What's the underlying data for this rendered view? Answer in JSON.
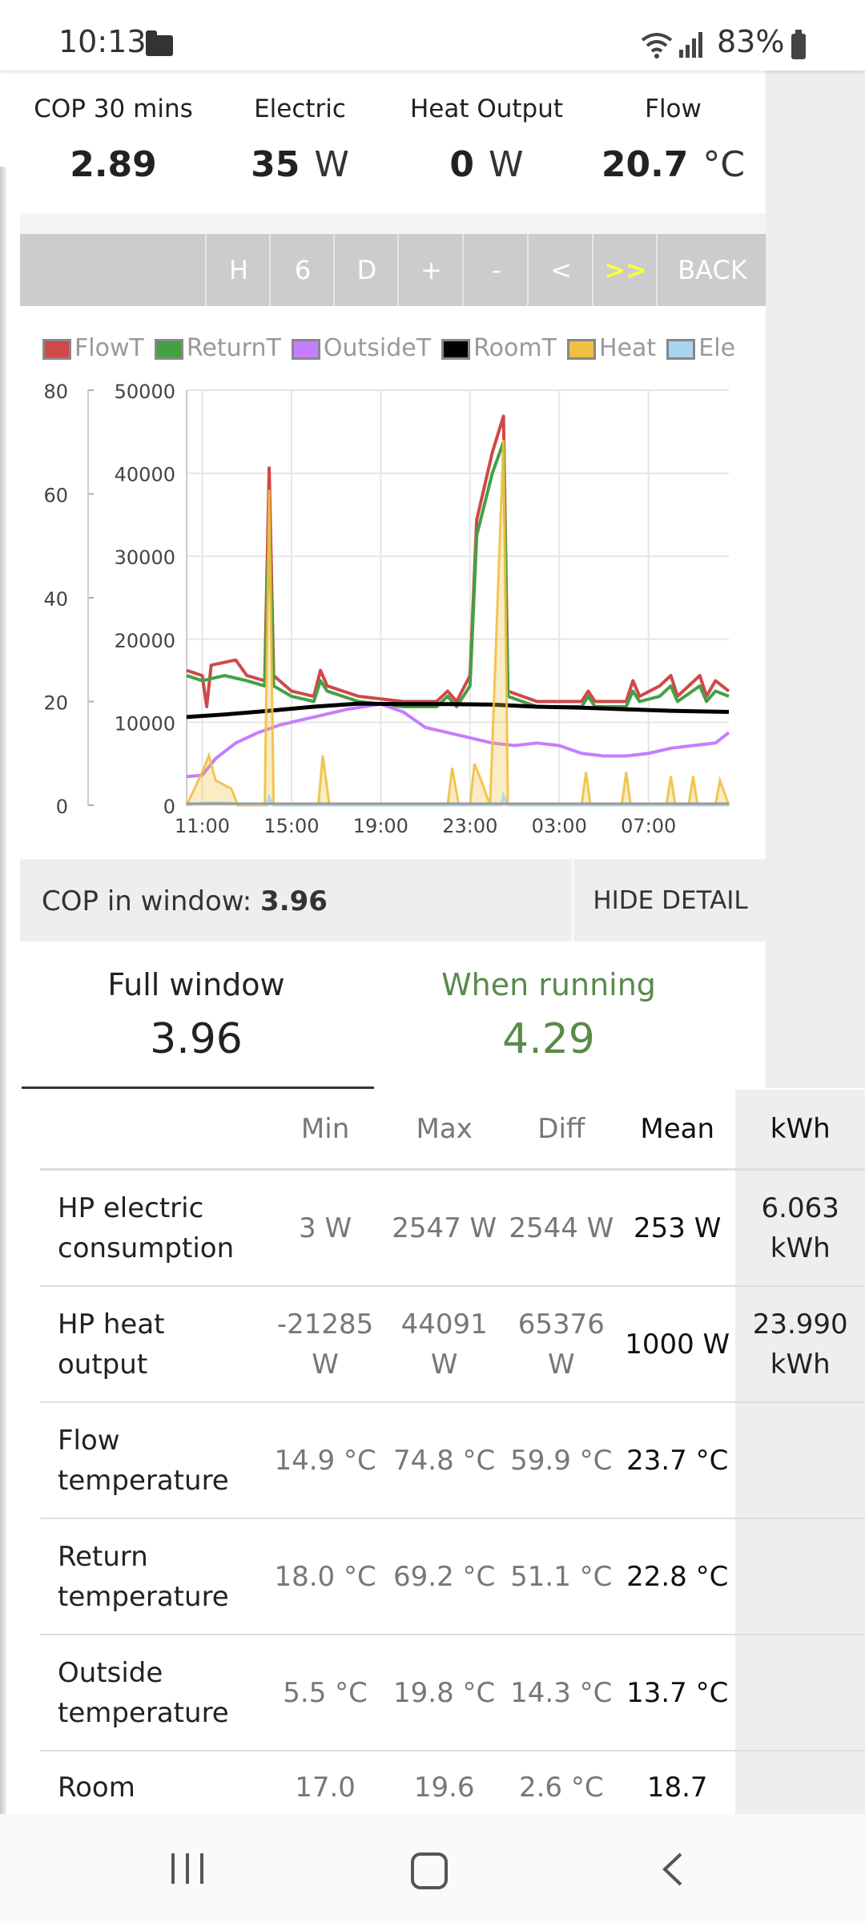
{
  "status_bar": {
    "time": "10:13",
    "battery": "83%"
  },
  "stats": [
    {
      "label": "COP 30 mins",
      "value": "2.89",
      "unit": ""
    },
    {
      "label": "Electric",
      "value": "35",
      "unit": "W"
    },
    {
      "label": "Heat Output",
      "value": "0",
      "unit": "W"
    },
    {
      "label": "Flow",
      "value": "20.7",
      "unit": "°C"
    }
  ],
  "toolbar": {
    "buttons": [
      "H",
      "6",
      "D",
      "+",
      "-",
      "<",
      ">>",
      "BACK"
    ]
  },
  "chart_data": {
    "type": "line",
    "legend": [
      {
        "name": "FlowT",
        "color": "#d04848"
      },
      {
        "name": "ReturnT",
        "color": "#44a044"
      },
      {
        "name": "OutsideT",
        "color": "#c77dff"
      },
      {
        "name": "RoomT",
        "color": "#000000"
      },
      {
        "name": "Heat",
        "color": "#f0c040"
      },
      {
        "name": "Ele",
        "color": "#a8d4f0"
      }
    ],
    "x_ticks": [
      "11:00",
      "15:00",
      "19:00",
      "23:00",
      "03:00",
      "07:00"
    ],
    "y_left_ticks": [
      "0",
      "20",
      "40",
      "60",
      "80"
    ],
    "y_right_ticks": [
      "0",
      "10000",
      "20000",
      "30000",
      "40000",
      "50000"
    ],
    "ylim_left": [
      0,
      80
    ],
    "ylim_right": [
      0,
      50000
    ],
    "x_range_hours": [
      10.3,
      34.6
    ],
    "series": [
      {
        "name": "FlowT",
        "axis": "left",
        "color": "#d04848",
        "points": [
          [
            10.3,
            26
          ],
          [
            11.0,
            25
          ],
          [
            11.2,
            19
          ],
          [
            11.4,
            27
          ],
          [
            12.5,
            28
          ],
          [
            13.0,
            25
          ],
          [
            13.8,
            24
          ],
          [
            14.0,
            65
          ],
          [
            14.2,
            25
          ],
          [
            15.0,
            22
          ],
          [
            16.0,
            21
          ],
          [
            16.3,
            26
          ],
          [
            16.6,
            23
          ],
          [
            18.0,
            21
          ],
          [
            20.0,
            20
          ],
          [
            21.5,
            20
          ],
          [
            22.0,
            22
          ],
          [
            22.4,
            20
          ],
          [
            23.0,
            25
          ],
          [
            23.3,
            55
          ],
          [
            24.0,
            68
          ],
          [
            24.5,
            75
          ],
          [
            24.7,
            22
          ],
          [
            26.0,
            20
          ],
          [
            28.0,
            20
          ],
          [
            28.3,
            22
          ],
          [
            28.6,
            20
          ],
          [
            30.0,
            20
          ],
          [
            30.3,
            24
          ],
          [
            30.6,
            21
          ],
          [
            31.5,
            23
          ],
          [
            32.0,
            25
          ],
          [
            32.3,
            21
          ],
          [
            33.3,
            25
          ],
          [
            33.6,
            21
          ],
          [
            34.0,
            24
          ],
          [
            34.6,
            22
          ]
        ]
      },
      {
        "name": "ReturnT",
        "axis": "left",
        "color": "#44a044",
        "points": [
          [
            10.3,
            25
          ],
          [
            11.0,
            24
          ],
          [
            12.0,
            25
          ],
          [
            13.0,
            24
          ],
          [
            13.8,
            23
          ],
          [
            14.0,
            54
          ],
          [
            14.2,
            23
          ],
          [
            15.0,
            21
          ],
          [
            16.0,
            20
          ],
          [
            16.3,
            24
          ],
          [
            16.6,
            22
          ],
          [
            18.0,
            20
          ],
          [
            20.0,
            19
          ],
          [
            21.5,
            19
          ],
          [
            22.0,
            21
          ],
          [
            22.4,
            19
          ],
          [
            23.0,
            23
          ],
          [
            23.3,
            52
          ],
          [
            24.0,
            64
          ],
          [
            24.5,
            70
          ],
          [
            24.7,
            21
          ],
          [
            26.0,
            19
          ],
          [
            28.0,
            19
          ],
          [
            28.3,
            21
          ],
          [
            28.6,
            19
          ],
          [
            30.0,
            19
          ],
          [
            30.3,
            22
          ],
          [
            30.6,
            20
          ],
          [
            31.5,
            21
          ],
          [
            32.0,
            23
          ],
          [
            32.3,
            20
          ],
          [
            33.3,
            23
          ],
          [
            33.6,
            20
          ],
          [
            34.0,
            22
          ],
          [
            34.6,
            21
          ]
        ]
      },
      {
        "name": "OutsideT",
        "axis": "left",
        "color": "#c77dff",
        "points": [
          [
            10.3,
            5.5
          ],
          [
            11.0,
            5.8
          ],
          [
            11.6,
            9
          ],
          [
            12.5,
            12
          ],
          [
            13.5,
            14
          ],
          [
            14.5,
            15.5
          ],
          [
            16.0,
            17
          ],
          [
            17.5,
            18.5
          ],
          [
            19.0,
            19.5
          ],
          [
            20.0,
            18
          ],
          [
            21.0,
            15
          ],
          [
            22.0,
            14
          ],
          [
            23.0,
            13
          ],
          [
            24.0,
            12
          ],
          [
            25.0,
            11.5
          ],
          [
            26.0,
            12
          ],
          [
            27.0,
            11.5
          ],
          [
            28.0,
            10
          ],
          [
            29.0,
            9.5
          ],
          [
            30.0,
            9.5
          ],
          [
            31.0,
            10
          ],
          [
            32.0,
            11
          ],
          [
            33.0,
            11.5
          ],
          [
            34.0,
            12
          ],
          [
            34.6,
            14
          ]
        ]
      },
      {
        "name": "RoomT",
        "axis": "left",
        "color": "#000000",
        "points": [
          [
            10.3,
            17
          ],
          [
            12.0,
            17.5
          ],
          [
            14.0,
            18.2
          ],
          [
            16.0,
            19
          ],
          [
            18.0,
            19.6
          ],
          [
            20.0,
            19.5
          ],
          [
            22.0,
            19.5
          ],
          [
            24.0,
            19.4
          ],
          [
            26.0,
            19
          ],
          [
            28.0,
            18.8
          ],
          [
            30.0,
            18.5
          ],
          [
            32.0,
            18.2
          ],
          [
            34.6,
            18
          ]
        ]
      },
      {
        "name": "Heat",
        "axis": "right",
        "color": "#f0c040",
        "points": [
          [
            10.3,
            0
          ],
          [
            11.0,
            4000
          ],
          [
            11.3,
            6000
          ],
          [
            11.6,
            3000
          ],
          [
            12.3,
            2000
          ],
          [
            12.6,
            0
          ],
          [
            13.8,
            0
          ],
          [
            14.0,
            38000
          ],
          [
            14.2,
            0
          ],
          [
            16.2,
            0
          ],
          [
            16.4,
            6000
          ],
          [
            16.7,
            0
          ],
          [
            22.0,
            0
          ],
          [
            22.2,
            4500
          ],
          [
            22.5,
            0
          ],
          [
            23.0,
            0
          ],
          [
            23.2,
            5000
          ],
          [
            23.5,
            3000
          ],
          [
            23.9,
            0
          ],
          [
            24.5,
            44000
          ],
          [
            24.7,
            0
          ],
          [
            28.0,
            0
          ],
          [
            28.2,
            4000
          ],
          [
            28.4,
            0
          ],
          [
            29.8,
            0
          ],
          [
            30.0,
            4000
          ],
          [
            30.2,
            0
          ],
          [
            31.8,
            0
          ],
          [
            32.0,
            3500
          ],
          [
            32.2,
            0
          ],
          [
            32.8,
            0
          ],
          [
            33.0,
            3500
          ],
          [
            33.2,
            0
          ],
          [
            34.0,
            0
          ],
          [
            34.2,
            3000
          ],
          [
            34.6,
            0
          ]
        ]
      },
      {
        "name": "Ele",
        "axis": "right",
        "color": "#a8d4f0",
        "points": [
          [
            10.3,
            0
          ],
          [
            11.0,
            300
          ],
          [
            12.0,
            300
          ],
          [
            13.9,
            0
          ],
          [
            14.0,
            1000
          ],
          [
            14.2,
            0
          ],
          [
            24.4,
            0
          ],
          [
            24.5,
            1200
          ],
          [
            24.7,
            0
          ],
          [
            34.6,
            0
          ]
        ]
      }
    ]
  },
  "cop_window": {
    "label": "COP in window:",
    "value": "3.96",
    "hide_label": "HIDE DETAIL"
  },
  "summary": {
    "full_label": "Full window",
    "full_value": "3.96",
    "running_label": "When running",
    "running_value": "4.29"
  },
  "table": {
    "headers": [
      "",
      "Min",
      "Max",
      "Diff",
      "Mean",
      "kWh"
    ],
    "rows": [
      {
        "name": "HP electric consumption",
        "min": "3 W",
        "max": "2547 W",
        "diff": "2544 W",
        "mean": "253 W",
        "kwh": "6.063 kWh"
      },
      {
        "name": "HP heat output",
        "min": "-21285 W",
        "max": "44091 W",
        "diff": "65376 W",
        "mean": "1000 W",
        "kwh": "23.990 kWh"
      },
      {
        "name": "Flow temperature",
        "min": "14.9 °C",
        "max": "74.8 °C",
        "diff": "59.9 °C",
        "mean": "23.7 °C",
        "kwh": ""
      },
      {
        "name": "Return temperature",
        "min": "18.0 °C",
        "max": "69.2 °C",
        "diff": "51.1 °C",
        "mean": "22.8 °C",
        "kwh": ""
      },
      {
        "name": "Outside temperature",
        "min": "5.5 °C",
        "max": "19.8 °C",
        "diff": "14.3 °C",
        "mean": "13.7 °C",
        "kwh": ""
      },
      {
        "name": "Room",
        "min": "17.0",
        "max": "19.6",
        "diff": "2.6 °C",
        "mean": "18.7",
        "kwh": ""
      }
    ]
  },
  "colors": {
    "accent_green": "#5a8a4a",
    "toolbar_bg": "#cccccc",
    "highlight": "#ffff33"
  }
}
